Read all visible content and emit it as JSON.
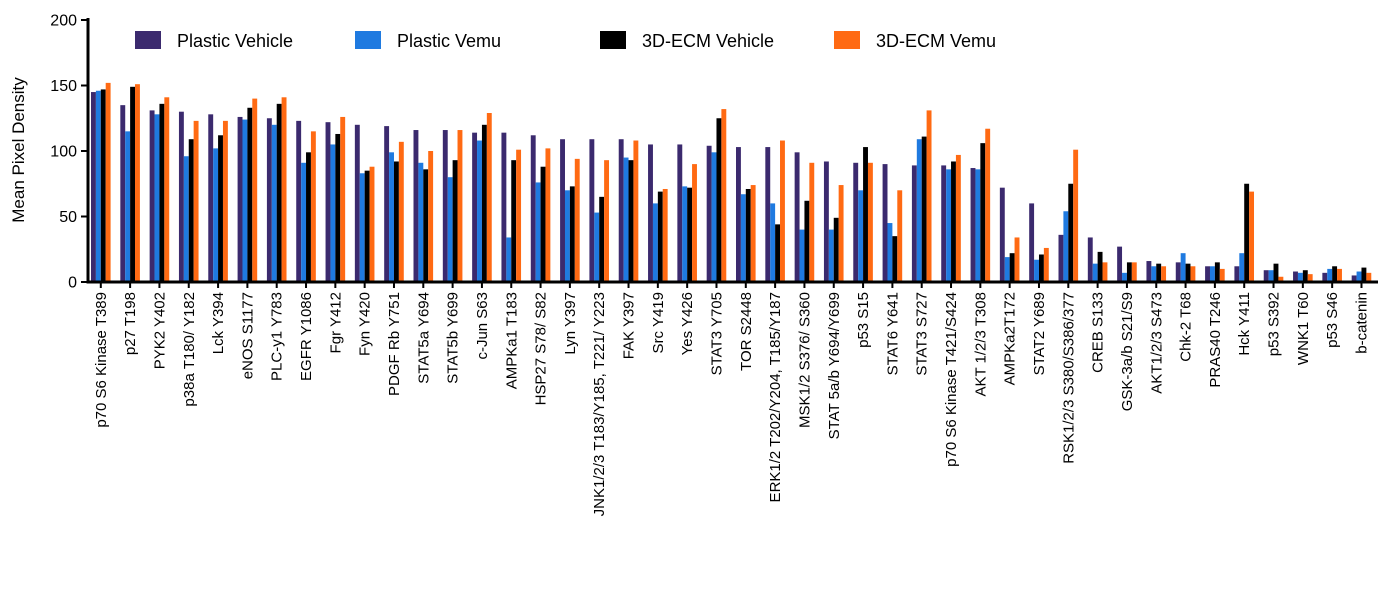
{
  "chart_data": {
    "type": "bar",
    "title": "",
    "xlabel": "",
    "ylabel": "Mean Pixel Density",
    "ylim": [
      0,
      200
    ],
    "yticks": [
      0,
      50,
      100,
      150,
      200
    ],
    "legend_position": "top",
    "grid": false,
    "categories": [
      "p70 S6 Kinase T389",
      "p27 T198",
      "PYK2 Y402",
      "p38a T180/ Y182",
      "Lck Y394",
      "eNOS S1177",
      "PLC-y1 Y783",
      "EGFR Y1086",
      "Fgr Y412",
      "Fyn Y420",
      "PDGF Rb Y751",
      "STAT5a Y694",
      "STAT5b Y699",
      "c-Jun S63",
      "AMPKa1 T183",
      "HSP27 S78/ S82",
      "Lyn Y397",
      "JNK1/2/3 T183/Y185, T221/ Y223",
      "FAK Y397",
      "Src Y419",
      "Yes Y426",
      "STAT3 Y705",
      "TOR S2448",
      "ERK1/2 T202/Y204, T185/Y187",
      "MSK1/2 S376/ S360",
      "STAT 5a/b Y694/Y699",
      "p53 S15",
      "STAT6 Y641",
      "STAT3 S727",
      "p70 S6 Kinase T421/S424",
      "AKT 1/2/3 T308",
      "AMPKa2T172",
      "STAT2 Y689",
      "RSK1/2/3 S380/S386/377",
      "CREB S133",
      "GSK-3a/b S21/S9",
      "AKT1/2/3 S473",
      "Chk-2 T68",
      "PRAS40 T246",
      "Hck Y411",
      "p53 S392",
      "WNK1 T60",
      "p53 S46",
      "b-catenin"
    ],
    "series": [
      {
        "name": "Plastic Vehicle",
        "color": "#3b2a6e",
        "values": [
          145,
          135,
          131,
          130,
          128,
          126,
          125,
          123,
          122,
          120,
          119,
          116,
          116,
          114,
          114,
          112,
          109,
          109,
          109,
          105,
          105,
          104,
          103,
          103,
          99,
          92,
          91,
          90,
          89,
          89,
          87,
          72,
          60,
          36,
          34,
          27,
          16,
          15,
          12,
          12,
          9,
          8,
          7,
          5
        ]
      },
      {
        "name": "Plastic Vemu",
        "color": "#1f7ae0",
        "values": [
          146,
          115,
          128,
          96,
          102,
          124,
          120,
          91,
          105,
          83,
          99,
          91,
          80,
          108,
          34,
          76,
          70,
          53,
          95,
          60,
          73,
          99,
          67,
          60,
          40,
          40,
          70,
          45,
          109,
          86,
          86,
          19,
          17,
          54,
          14,
          7,
          12,
          22,
          12,
          22,
          9,
          7,
          10,
          8
        ]
      },
      {
        "name": "3D-ECM Vehicle",
        "color": "#000000",
        "values": [
          147,
          149,
          136,
          109,
          112,
          133,
          136,
          99,
          113,
          85,
          92,
          86,
          93,
          120,
          93,
          88,
          73,
          65,
          93,
          69,
          72,
          125,
          71,
          44,
          62,
          49,
          103,
          35,
          111,
          92,
          106,
          22,
          21,
          75,
          23,
          15,
          14,
          14,
          15,
          75,
          14,
          9,
          12,
          11
        ]
      },
      {
        "name": "3D-ECM Vemu",
        "color": "#ff6a13",
        "values": [
          152,
          151,
          141,
          123,
          123,
          140,
          141,
          115,
          126,
          88,
          107,
          100,
          116,
          129,
          101,
          102,
          94,
          93,
          108,
          71,
          90,
          132,
          74,
          108,
          91,
          74,
          91,
          70,
          131,
          97,
          117,
          34,
          26,
          101,
          15,
          15,
          12,
          12,
          10,
          69,
          4,
          6,
          10,
          7
        ]
      }
    ]
  }
}
